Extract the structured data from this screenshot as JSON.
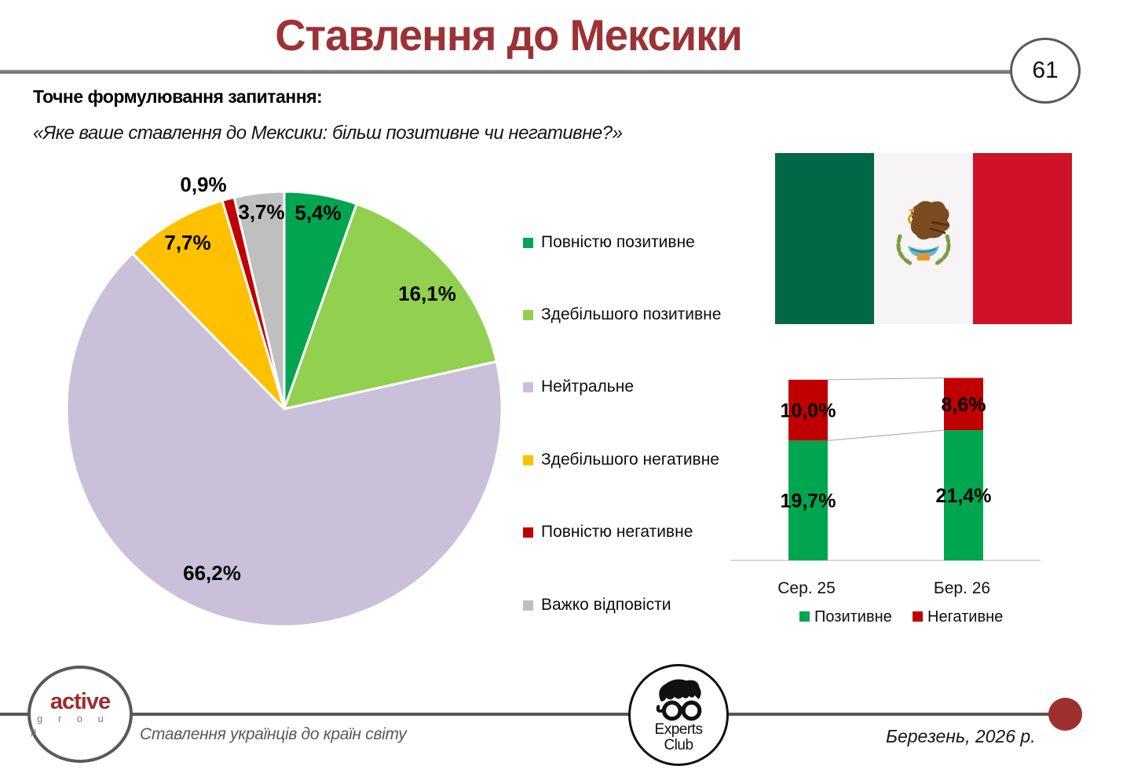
{
  "header": {
    "title": "Ставлення до Мексики",
    "page_number": "61",
    "accent_color": "#9C3234"
  },
  "question": {
    "label": "Точне формулювання запитання:",
    "text": "«Яке ваше ставлення до Мексики: більш позитивне чи негативне?»"
  },
  "flag": {
    "stripe_colors": [
      "#006847",
      "#F6F4F5",
      "#CE1126"
    ]
  },
  "chart_data": [
    {
      "type": "pie",
      "title": "",
      "unit": "%",
      "start_angle_deg": 0,
      "direction": "clockwise",
      "legend_position": "right",
      "slices": [
        {
          "label": "Повністю позитивне",
          "value": 5.4,
          "display": "5,4%",
          "color": "#00A550"
        },
        {
          "label": "Здебільшого позитивне",
          "value": 16.1,
          "display": "16,1%",
          "color": "#92D050"
        },
        {
          "label": "Нейтральне",
          "value": 66.2,
          "display": "66,2%",
          "color": "#CBC0DA"
        },
        {
          "label": "Здебільшого негативне",
          "value": 7.7,
          "display": "7,7%",
          "color": "#FFC000"
        },
        {
          "label": "Повністю негативне",
          "value": 0.9,
          "display": "0,9%",
          "color": "#C00000"
        },
        {
          "label": "Важко відповісти",
          "value": 3.7,
          "display": "3,7%",
          "color": "#BFBFBF"
        }
      ]
    },
    {
      "type": "bar",
      "subtype": "stacked-column",
      "categories": [
        "Сер. 25",
        "Бер. 26"
      ],
      "series": [
        {
          "name": "Позитивне",
          "color": "#00A550",
          "values": [
            19.7,
            21.4
          ],
          "values_display": [
            "19,7%",
            "21,4%"
          ]
        },
        {
          "name": "Негативне",
          "color": "#C00000",
          "values": [
            10.0,
            8.6
          ],
          "values_display": [
            "10,0%",
            "8,6%"
          ]
        }
      ],
      "ylim": [
        0,
        32
      ],
      "gridlines": false,
      "legend_position": "bottom",
      "connector_lines": true
    }
  ],
  "footer": {
    "brand": {
      "name": "active",
      "sub": "g r o u p"
    },
    "caption": "Ставлення українців до країн світу",
    "experts_club": {
      "line1": "Experts",
      "line2": "Club"
    },
    "date": "Березень, 2026 р.",
    "dot_color": "#9D2F2F"
  }
}
